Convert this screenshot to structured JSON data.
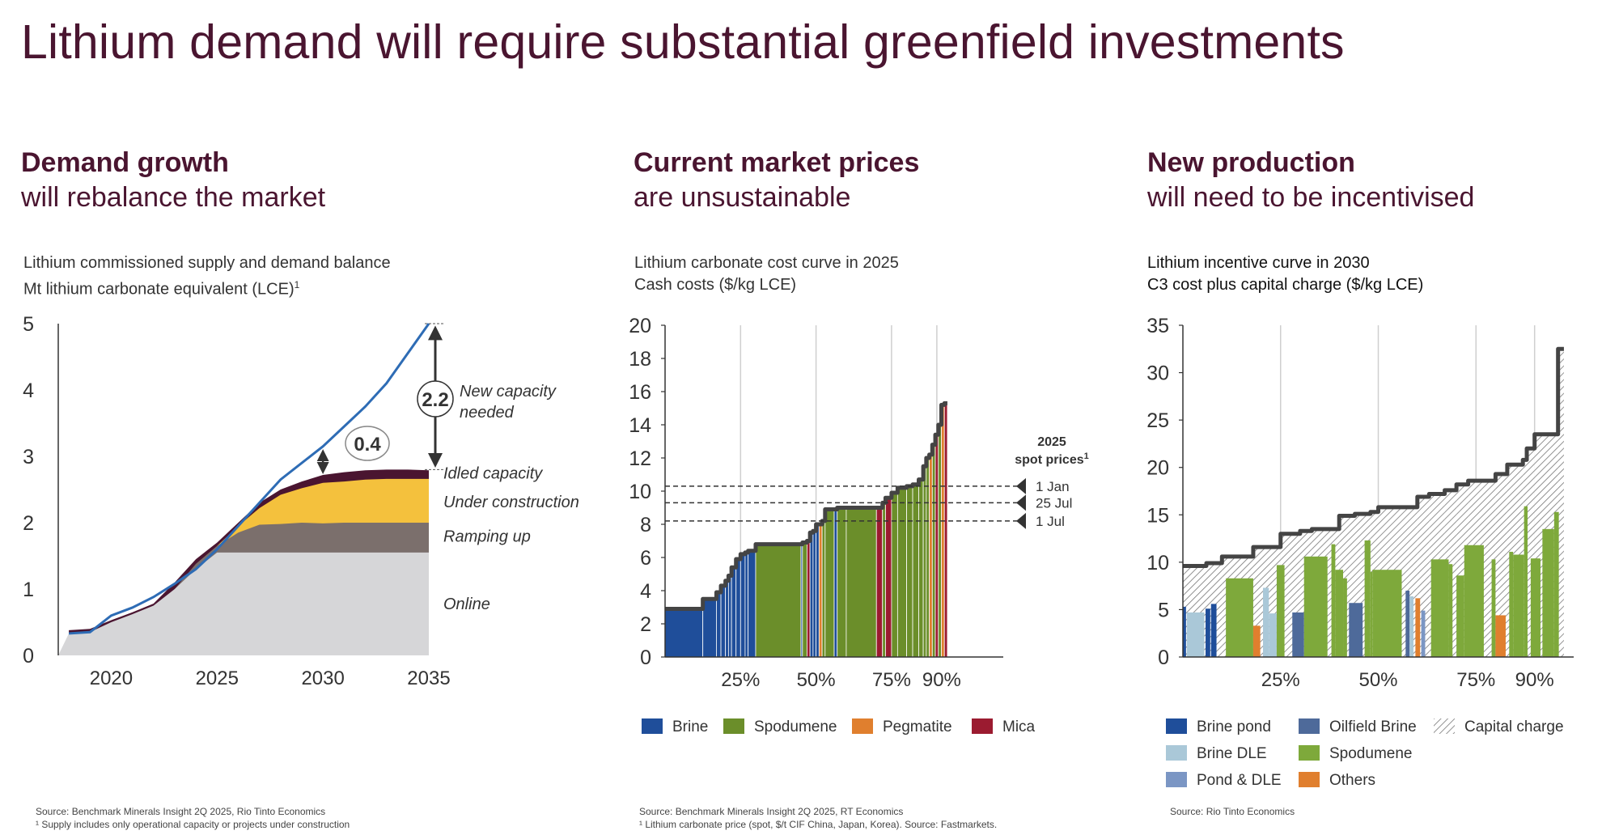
{
  "title": "Lithium demand will require substantial greenfield investments",
  "columns": [
    {
      "heading": "Demand growth",
      "subheading": "will rebalance the market",
      "chart_title": "Lithium commissioned supply and demand balance",
      "chart_subtitle": "Mt lithium carbonate equivalent (LCE)",
      "chart_subtitle_sup": "1",
      "source": "Source: Benchmark Minerals Insight 2Q 2025, Rio Tinto Economics",
      "footnote": "¹ Supply includes only operational capacity or projects under construction"
    },
    {
      "heading": "Current market prices",
      "subheading": "are unsustainable",
      "chart_title": "Lithium carbonate cost curve in 2025",
      "chart_subtitle": "Cash costs ($/kg LCE)",
      "source": "Source: Benchmark Minerals Insight 2Q 2025, RT Economics",
      "footnote": "¹ Lithium carbonate price (spot, $/t CIF China, Japan, Korea). Source: Fastmarkets."
    },
    {
      "heading": "New production",
      "subheading": "will need to be incentivised",
      "chart_title": "Lithium incentive curve in 2030",
      "chart_subtitle": "C3 cost plus capital charge ($/kg LCE)",
      "source": "Source: Rio Tinto Economics",
      "footnote": ""
    }
  ],
  "chart_data": [
    {
      "type": "area",
      "x_ticks": [
        "2020",
        "2025",
        "2030",
        "2035"
      ],
      "y_ticks": [
        "0",
        "1",
        "2",
        "3",
        "4",
        "5"
      ],
      "ylim": [
        0,
        5
      ],
      "xlim": [
        2017.5,
        2035
      ],
      "layers": [
        {
          "name": "Online",
          "color": "#d6d6d8",
          "x": [
            2017.5,
            2018,
            2019,
            2020,
            2021,
            2022,
            2023,
            2024,
            2025,
            2026,
            2027,
            2028,
            2029,
            2030,
            2031,
            2032,
            2033,
            2034,
            2035
          ],
          "top": [
            0,
            0.33,
            0.35,
            0.5,
            0.62,
            0.75,
            1.0,
            1.3,
            1.55,
            1.55,
            1.55,
            1.55,
            1.55,
            1.55,
            1.55,
            1.55,
            1.55,
            1.55,
            1.55
          ]
        },
        {
          "name": "Ramping up",
          "color": "#7b6f6c",
          "x": [
            2023,
            2024,
            2025,
            2026,
            2027,
            2028,
            2029,
            2030,
            2031,
            2032,
            2033,
            2034,
            2035
          ],
          "top": [
            1.0,
            1.38,
            1.65,
            1.85,
            1.97,
            1.98,
            2.0,
            1.99,
            2.0,
            2.0,
            2.0,
            2.0,
            2.0
          ]
        },
        {
          "name": "Under construction",
          "color": "#f4c13d",
          "x": [
            2025,
            2026,
            2027,
            2028,
            2029,
            2030,
            2031,
            2032,
            2033,
            2034,
            2035
          ],
          "top": [
            1.65,
            1.95,
            2.22,
            2.42,
            2.52,
            2.6,
            2.62,
            2.65,
            2.66,
            2.66,
            2.66
          ]
        },
        {
          "name": "Idled capacity",
          "color": "#4a1530",
          "x": [
            2018,
            2019,
            2020,
            2021,
            2022,
            2023,
            2024,
            2025,
            2026,
            2027,
            2028,
            2029,
            2030,
            2031,
            2032,
            2033,
            2034,
            2035
          ],
          "top": [
            0.38,
            0.4,
            0.53,
            0.65,
            0.78,
            1.1,
            1.45,
            1.7,
            2.0,
            2.3,
            2.5,
            2.62,
            2.72,
            2.76,
            2.79,
            2.8,
            2.8,
            2.79
          ]
        }
      ],
      "demand_series": {
        "name": "Demand",
        "color": "#2e6cb5",
        "x": [
          2018,
          2019,
          2020,
          2021,
          2022,
          2023,
          2024,
          2025,
          2026,
          2027,
          2028,
          2029,
          2030,
          2031,
          2032,
          2033,
          2034,
          2035
        ],
        "y": [
          0.33,
          0.35,
          0.6,
          0.72,
          0.88,
          1.08,
          1.3,
          1.6,
          1.95,
          2.3,
          2.65,
          2.9,
          3.15,
          3.45,
          3.75,
          4.1,
          4.55,
          5.0
        ]
      },
      "annotations": [
        {
          "label": "2.2",
          "text_lines": [
            "New capacity",
            "needed"
          ],
          "x": 2035.3,
          "from": 2.8,
          "to": 5.0
        },
        {
          "label": "0.4",
          "x": 2030.0,
          "from": 2.72,
          "to": 3.12
        }
      ],
      "layer_labels": [
        {
          "text": "Idled capacity",
          "y": 2.75
        },
        {
          "text": "Under construction",
          "y": 2.32
        },
        {
          "text": "Ramping up",
          "y": 1.8
        },
        {
          "text": "Online",
          "y": 0.78
        }
      ]
    },
    {
      "type": "bar",
      "subtype": "cost_curve",
      "y_ticks": [
        "0",
        "2",
        "4",
        "6",
        "8",
        "10",
        "12",
        "14",
        "16",
        "18",
        "20"
      ],
      "ylim": [
        0,
        20
      ],
      "x_ticks": [
        "25%",
        "50%",
        "75%",
        "90%"
      ],
      "x_tick_values": [
        0.25,
        0.5,
        0.75,
        0.9
      ],
      "xlim": [
        0,
        1.12
      ],
      "series_colors": {
        "Brine": "#1f4e9a",
        "Spodumene": "#6b8e2a",
        "Pegmatite": "#e07f2e",
        "Mica": "#9b1b30"
      },
      "legend": [
        "Brine",
        "Spodumene",
        "Pegmatite",
        "Mica"
      ],
      "bars": [
        [
          "B",
          0.0,
          0.125,
          2.9
        ],
        [
          "B",
          0.125,
          0.17,
          3.5
        ],
        [
          "B",
          0.17,
          0.185,
          3.9
        ],
        [
          "B",
          0.185,
          0.2,
          4.3
        ],
        [
          "B",
          0.2,
          0.21,
          4.6
        ],
        [
          "B",
          0.21,
          0.22,
          4.9
        ],
        [
          "B",
          0.22,
          0.235,
          5.4
        ],
        [
          "B",
          0.235,
          0.25,
          5.9
        ],
        [
          "B",
          0.25,
          0.265,
          6.2
        ],
        [
          "B",
          0.265,
          0.275,
          6.3
        ],
        [
          "B",
          0.275,
          0.3,
          6.4
        ],
        [
          "S",
          0.3,
          0.45,
          6.8
        ],
        [
          "B",
          0.45,
          0.455,
          6.8
        ],
        [
          "S",
          0.455,
          0.47,
          6.9
        ],
        [
          "M",
          0.47,
          0.48,
          7.0
        ],
        [
          "B",
          0.48,
          0.49,
          7.5
        ],
        [
          "B",
          0.49,
          0.5,
          7.6
        ],
        [
          "B",
          0.5,
          0.51,
          8.0
        ],
        [
          "P",
          0.51,
          0.52,
          8.0
        ],
        [
          "S",
          0.52,
          0.53,
          8.2
        ],
        [
          "S",
          0.53,
          0.56,
          8.9
        ],
        [
          "B",
          0.56,
          0.57,
          8.9
        ],
        [
          "S",
          0.57,
          0.6,
          9.0
        ],
        [
          "S",
          0.6,
          0.7,
          9.0
        ],
        [
          "M",
          0.7,
          0.72,
          9.0
        ],
        [
          "S",
          0.72,
          0.73,
          9.3
        ],
        [
          "M",
          0.73,
          0.75,
          9.6
        ],
        [
          "S",
          0.75,
          0.77,
          9.9
        ],
        [
          "S",
          0.77,
          0.8,
          10.2
        ],
        [
          "S",
          0.8,
          0.82,
          10.3
        ],
        [
          "S",
          0.82,
          0.84,
          10.4
        ],
        [
          "S",
          0.84,
          0.855,
          10.7
        ],
        [
          "S",
          0.855,
          0.865,
          11.5
        ],
        [
          "S",
          0.865,
          0.875,
          12.0
        ],
        [
          "P",
          0.875,
          0.885,
          12.2
        ],
        [
          "S",
          0.885,
          0.895,
          12.8
        ],
        [
          "M",
          0.895,
          0.905,
          13.4
        ],
        [
          "S",
          0.905,
          0.915,
          14.0
        ],
        [
          "P",
          0.915,
          0.925,
          15.2
        ],
        [
          "M",
          0.925,
          0.935,
          15.3
        ]
      ],
      "spot_prices": {
        "title_lines": [
          "2025",
          "spot prices"
        ],
        "title_sup": "1",
        "lines": [
          {
            "label": "1 Jan",
            "value": 10.3
          },
          {
            "label": "25 Jul",
            "value": 9.3
          },
          {
            "label": "1 Jul",
            "value": 8.2
          }
        ]
      }
    },
    {
      "type": "bar",
      "subtype": "incentive_curve",
      "y_ticks": [
        "0",
        "5",
        "10",
        "15",
        "20",
        "25",
        "30",
        "35"
      ],
      "ylim": [
        0,
        35
      ],
      "x_ticks": [
        "25%",
        "50%",
        "75%",
        "90%"
      ],
      "x_tick_values": [
        0.25,
        0.5,
        0.75,
        0.9
      ],
      "xlim": [
        0,
        1.0
      ],
      "series_colors": {
        "Brine pond": "#1f4e9a",
        "Brine DLE": "#aac8d8",
        "Pond & DLE": "#7b96c4",
        "Oilfield Brine": "#4e6a9a",
        "Spodumene": "#7ea93b",
        "Others": "#e07f2e",
        "Capital charge": "hatch"
      },
      "legend": [
        "Brine pond",
        "Brine DLE",
        "Pond & DLE",
        "Oilfield Brine",
        "Spodumene",
        "Others",
        "Capital charge"
      ],
      "incentive_steps": [
        [
          0.0,
          0.06,
          9.6
        ],
        [
          0.06,
          0.1,
          9.9
        ],
        [
          0.1,
          0.18,
          10.6
        ],
        [
          0.18,
          0.25,
          11.6
        ],
        [
          0.25,
          0.3,
          13.0
        ],
        [
          0.3,
          0.33,
          13.3
        ],
        [
          0.33,
          0.4,
          13.5
        ],
        [
          0.4,
          0.44,
          14.9
        ],
        [
          0.44,
          0.48,
          15.1
        ],
        [
          0.48,
          0.5,
          15.3
        ],
        [
          0.5,
          0.6,
          15.8
        ],
        [
          0.6,
          0.63,
          16.9
        ],
        [
          0.63,
          0.67,
          17.2
        ],
        [
          0.67,
          0.7,
          17.6
        ],
        [
          0.7,
          0.73,
          18.2
        ],
        [
          0.73,
          0.8,
          18.6
        ],
        [
          0.8,
          0.83,
          19.3
        ],
        [
          0.83,
          0.87,
          20.3
        ],
        [
          0.87,
          0.88,
          20.8
        ],
        [
          0.88,
          0.9,
          22.0
        ],
        [
          0.9,
          0.96,
          23.5
        ],
        [
          0.96,
          0.975,
          32.5
        ]
      ],
      "cost_bars": [
        [
          "BP",
          0.0,
          0.008,
          5.3
        ],
        [
          "BD",
          0.01,
          0.055,
          4.7
        ],
        [
          "BP",
          0.058,
          0.07,
          5.1
        ],
        [
          "BP",
          0.072,
          0.086,
          5.6
        ],
        [
          "SP",
          0.11,
          0.18,
          8.3
        ],
        [
          "OT",
          0.18,
          0.198,
          3.3
        ],
        [
          "BD",
          0.205,
          0.22,
          7.3
        ],
        [
          "BD",
          0.22,
          0.24,
          4.6
        ],
        [
          "SP",
          0.24,
          0.26,
          9.7
        ],
        [
          "OL",
          0.28,
          0.31,
          4.7
        ],
        [
          "SP",
          0.31,
          0.37,
          10.6
        ],
        [
          "SP",
          0.38,
          0.39,
          11.9
        ],
        [
          "SP",
          0.39,
          0.41,
          9.2
        ],
        [
          "SP",
          0.41,
          0.42,
          8.3
        ],
        [
          "OL",
          0.425,
          0.46,
          5.7
        ],
        [
          "SP",
          0.465,
          0.48,
          12.3
        ],
        [
          "SP",
          0.48,
          0.485,
          9.0
        ],
        [
          "SP",
          0.485,
          0.56,
          9.2
        ],
        [
          "OL",
          0.57,
          0.58,
          7.0
        ],
        [
          "BD",
          0.58,
          0.59,
          6.4
        ],
        [
          "OT",
          0.595,
          0.607,
          6.2
        ],
        [
          "PD",
          0.61,
          0.62,
          4.9
        ],
        [
          "SP",
          0.635,
          0.68,
          10.3
        ],
        [
          "SP",
          0.68,
          0.69,
          9.8
        ],
        [
          "SP",
          0.7,
          0.72,
          8.6
        ],
        [
          "SP",
          0.72,
          0.77,
          11.8
        ],
        [
          "SP",
          0.79,
          0.8,
          10.3
        ],
        [
          "OT",
          0.8,
          0.826,
          4.4
        ],
        [
          "SP",
          0.835,
          0.845,
          11.1
        ],
        [
          "SP",
          0.845,
          0.873,
          10.8
        ],
        [
          "SP",
          0.873,
          0.882,
          15.9
        ],
        [
          "SP",
          0.89,
          0.915,
          10.4
        ],
        [
          "SP",
          0.92,
          0.95,
          13.5
        ],
        [
          "SP",
          0.95,
          0.962,
          15.3
        ]
      ]
    }
  ]
}
